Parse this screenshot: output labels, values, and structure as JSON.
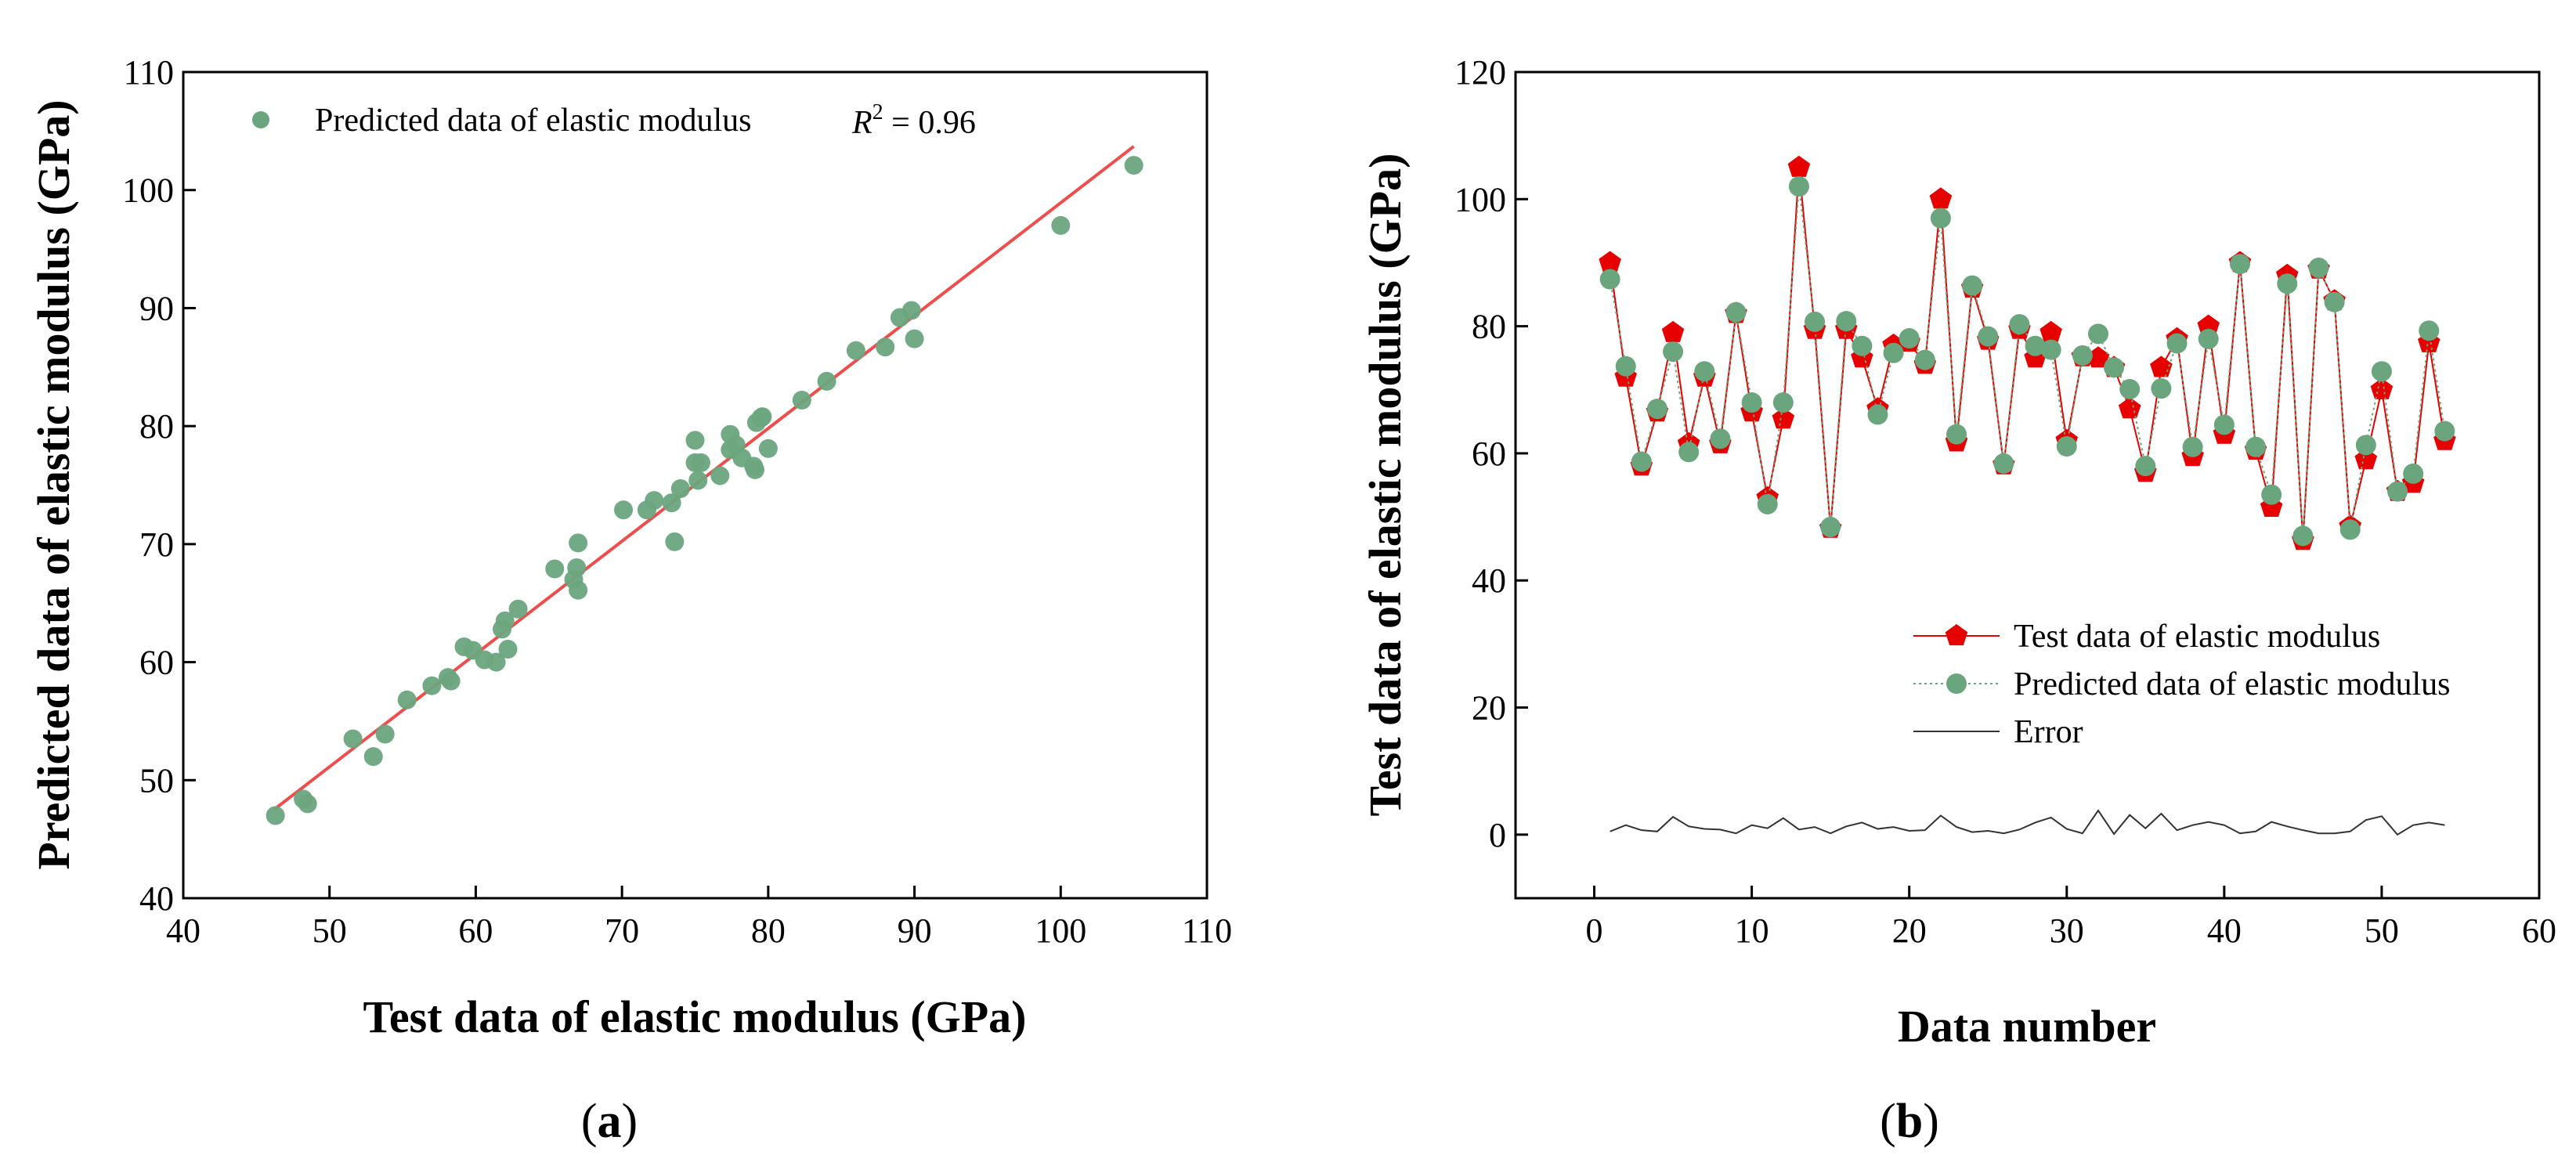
{
  "colors": {
    "scatter": "#6aa57e",
    "fit_line": "#ef4c4c",
    "test_series": "#e60000",
    "pred_series": "#6aa57e",
    "error_series": "#333333"
  },
  "chart_data": [
    {
      "id": "a",
      "type": "scatter",
      "panel_label": {
        "open": "(",
        "letter": "a",
        "close": ")"
      },
      "xlabel": "Test data of elastic modulus (GPa)",
      "ylabel": "Predicted data of elastic modulus (GPa)",
      "xlim": [
        40,
        110
      ],
      "ylim": [
        40,
        110
      ],
      "xticks": [
        40,
        50,
        60,
        70,
        80,
        90,
        100,
        110
      ],
      "yticks": [
        40,
        50,
        60,
        70,
        80,
        90,
        100,
        110
      ],
      "legend": {
        "label": "Predicted data of elastic modulus",
        "position": "top-left"
      },
      "r2": {
        "symbol": "R",
        "exp": "2",
        "rest": " = 0.96"
      },
      "fit_line": {
        "x": [
          46.2,
          105.0
        ],
        "y": [
          47.5,
          103.7
        ]
      },
      "points": [
        [
          46.3,
          47.0
        ],
        [
          48.2,
          48.4
        ],
        [
          48.5,
          48.0
        ],
        [
          51.6,
          53.5
        ],
        [
          53.0,
          52.0
        ],
        [
          53.8,
          53.9
        ],
        [
          55.3,
          56.8
        ],
        [
          57.0,
          58.0
        ],
        [
          58.1,
          58.7
        ],
        [
          58.3,
          58.4
        ],
        [
          59.2,
          61.3
        ],
        [
          59.8,
          61.0
        ],
        [
          60.6,
          60.2
        ],
        [
          61.4,
          60.0
        ],
        [
          61.8,
          62.8
        ],
        [
          62.0,
          63.5
        ],
        [
          62.2,
          61.1
        ],
        [
          62.9,
          64.5
        ],
        [
          65.4,
          67.9
        ],
        [
          66.7,
          67.0
        ],
        [
          66.9,
          68.0
        ],
        [
          67.0,
          66.1
        ],
        [
          67.0,
          70.1
        ],
        [
          70.1,
          72.9
        ],
        [
          71.7,
          72.9
        ],
        [
          72.2,
          73.7
        ],
        [
          73.4,
          73.5
        ],
        [
          73.6,
          70.2
        ],
        [
          74.0,
          74.7
        ],
        [
          75.0,
          76.9
        ],
        [
          75.0,
          78.8
        ],
        [
          75.2,
          75.4
        ],
        [
          75.4,
          76.9
        ],
        [
          76.7,
          75.8
        ],
        [
          77.4,
          78.0
        ],
        [
          77.4,
          79.3
        ],
        [
          77.8,
          78.4
        ],
        [
          78.2,
          77.3
        ],
        [
          79.0,
          76.6
        ],
        [
          79.1,
          76.3
        ],
        [
          79.2,
          80.3
        ],
        [
          79.5,
          80.7
        ],
        [
          79.6,
          80.8
        ],
        [
          80.0,
          78.1
        ],
        [
          82.3,
          82.2
        ],
        [
          84.0,
          83.8
        ],
        [
          86.0,
          86.4
        ],
        [
          88.0,
          86.7
        ],
        [
          89.0,
          89.2
        ],
        [
          89.8,
          89.8
        ],
        [
          90.0,
          87.4
        ],
        [
          100.0,
          97.0
        ],
        [
          105.0,
          102.1
        ]
      ]
    },
    {
      "id": "b",
      "type": "line",
      "panel_label": {
        "open": "(",
        "letter": "b",
        "close": ")"
      },
      "xlabel": "Data number",
      "ylabel": "Test data of elastic modulus (GPa)",
      "xlim": [
        -5,
        60
      ],
      "ylim": [
        -10,
        120
      ],
      "xticks": [
        0,
        10,
        20,
        30,
        40,
        50,
        60
      ],
      "yticks": [
        0,
        20,
        40,
        60,
        80,
        100,
        120
      ],
      "legend_position": "center-right",
      "series": [
        {
          "name": "Test data of elastic modulus",
          "marker": "pentagon",
          "values": [
            90,
            72,
            58,
            66.5,
            79,
            61.5,
            72,
            61.5,
            82,
            66.5,
            53,
            65.4,
            105,
            79.5,
            48.2,
            79.5,
            75,
            67,
            77,
            77.5,
            74,
            100,
            61.8,
            86,
            77.8,
            58.2,
            79.5,
            75,
            79,
            62,
            75.2,
            75,
            73.5,
            67,
            57,
            73.5,
            78,
            59.5,
            80,
            63,
            90,
            60.5,
            51.5,
            88,
            46.3,
            89,
            84,
            48.5,
            59,
            70,
            54,
            55.3,
            77.4,
            62
          ]
        },
        {
          "name": "Predicted data of elastic modulus",
          "marker": "circle",
          "values": [
            87.4,
            73.7,
            58.7,
            67,
            76,
            60.2,
            72.9,
            62.3,
            82.2,
            68,
            52,
            68,
            102,
            80.7,
            48.4,
            80.8,
            76.9,
            66.1,
            75.8,
            78.1,
            74.7,
            97,
            63,
            86.4,
            78.4,
            58.4,
            80.3,
            76.9,
            76.3,
            61.1,
            75.4,
            78.8,
            73.5,
            70.1,
            58,
            70.2,
            77.3,
            61,
            78,
            64.5,
            89.8,
            61,
            53.5,
            86.7,
            47,
            89.2,
            83.8,
            48,
            61.3,
            72.9,
            54,
            56.8,
            79.3,
            63.5
          ]
        },
        {
          "name": "Error",
          "marker": "none",
          "values": [
            0.5,
            1.5,
            0.7,
            0.5,
            2.8,
            1.3,
            0.9,
            0.8,
            0.2,
            1.5,
            1.0,
            2.6,
            0.8,
            1.2,
            0.2,
            1.3,
            1.9,
            0.9,
            1.2,
            0.6,
            0.7,
            3.0,
            1.2,
            0.4,
            0.6,
            0.2,
            0.8,
            1.9,
            2.7,
            0.9,
            0.2,
            3.8,
            0.1,
            3.1,
            1.0,
            3.3,
            0.7,
            1.5,
            2.0,
            1.5,
            0.2,
            0.5,
            2.0,
            1.3,
            0.7,
            0.2,
            0.2,
            0.5,
            2.3,
            2.9,
            0.0,
            1.5,
            1.9,
            1.5
          ]
        }
      ]
    }
  ]
}
